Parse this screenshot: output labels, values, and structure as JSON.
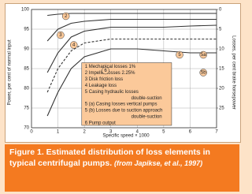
{
  "chart_data": {
    "type": "line",
    "x_label": "Specific speed × 1000",
    "y_label": "Power, per cent of normal input",
    "y2_label": "Losses, per cent brake horsepower",
    "x": [
      0.6,
      1,
      1.5,
      2,
      3,
      4,
      5,
      6,
      7
    ],
    "series": [
      {
        "color": "#333333",
        "values": [
          98.5,
          98.8,
          99,
          99,
          99,
          99,
          99,
          99,
          99
        ]
      },
      {
        "color": "#333333",
        "values": [
          92,
          95,
          96.5,
          97,
          97.5,
          97.5,
          97.5,
          97.5,
          97.5
        ]
      },
      {
        "color": "#333333",
        "values": [
          84,
          89,
          93,
          94.5,
          95.5,
          95.5,
          95.5,
          95.8,
          96
        ]
      },
      {
        "color": "#333333",
        "dashed": true,
        "values": [
          79,
          85,
          89.5,
          91.5,
          92.5,
          92.5,
          92.5,
          92.5,
          92.5
        ]
      },
      {
        "color": "#333333",
        "values": [
          73,
          79,
          85,
          88,
          90,
          90,
          89.5,
          89,
          89
        ]
      }
    ],
    "xlim": [
      0,
      7
    ],
    "xticks": [
      0,
      1,
      2,
      3,
      4,
      5,
      6,
      7
    ],
    "ylim": [
      70,
      100
    ],
    "yticks": [
      70,
      75,
      80,
      85,
      90,
      95,
      100
    ],
    "y2lim": [
      30,
      0
    ],
    "y2ticks": [
      25,
      20,
      15,
      10,
      5,
      0
    ],
    "grid": true,
    "annotations": [
      {
        "text": "2",
        "x": 1.3,
        "y": 98.3
      },
      {
        "text": "3",
        "x": 1.1,
        "y": 93.5
      },
      {
        "text": "4",
        "x": 1.6,
        "y": 91
      },
      {
        "text": "6",
        "x": 2.8,
        "y": 84.5
      },
      {
        "text": "5",
        "x": 5.6,
        "y": 88.5
      },
      {
        "text": "5a",
        "x": 6.5,
        "y": 88.5
      },
      {
        "text": "5b",
        "x": 6.5,
        "y": 84
      }
    ],
    "legend_lines": [
      "1    Mechanical losses 1%",
      "2    Impeller losses 2.25%",
      "3    Disk friction loss",
      "4    Leakage loss",
      "5    Casing hydraulic losses",
      "double-suction",
      "5 (a) Casing losses vertical pumps",
      "5 (b) Losses due to suction approach",
      "double-suction",
      "6    Pump output"
    ],
    "caption": "Figure 1. Estimated distribution of loss elements in typical centrifugal pumps.",
    "source": "(from Japikse, et al., 1997)"
  }
}
